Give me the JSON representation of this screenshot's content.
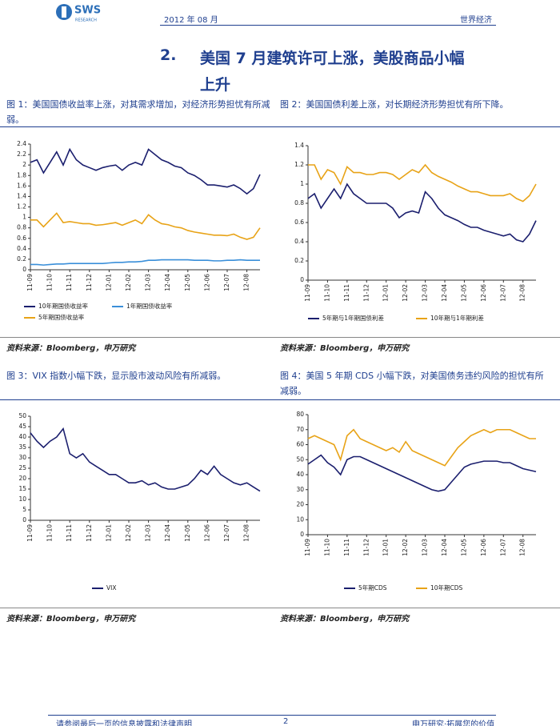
{
  "header": {
    "logo": "SWS",
    "logo_sub": "RESEARCH",
    "date": "2012 年 08 月",
    "section": "世界经济"
  },
  "title": {
    "number": "2.",
    "line1": "美国 7 月建筑许可上涨，美股商品小幅",
    "line2": "上升"
  },
  "figures": [
    {
      "caption": "图 1：美国国债收益率上涨，对其需求增加，对经济形势担忧有所减弱。",
      "source": "资料来源：Bloomberg，申万研究",
      "chart_data": {
        "type": "line",
        "xlim": [
          0,
          35
        ],
        "xticks": [
          {
            "value": 0,
            "label": "11-09"
          },
          {
            "value": 3,
            "label": "11-10"
          },
          {
            "value": 6,
            "label": "11-11"
          },
          {
            "value": 9,
            "label": "11-12"
          },
          {
            "value": 12,
            "label": "12-01"
          },
          {
            "value": 15,
            "label": "12-02"
          },
          {
            "value": 18,
            "label": "12-03"
          },
          {
            "value": 21,
            "label": "12-04"
          },
          {
            "value": 24,
            "label": "12-05"
          },
          {
            "value": 27,
            "label": "12-06"
          },
          {
            "value": 30,
            "label": "12-07"
          },
          {
            "value": 33,
            "label": "12-08"
          }
        ],
        "ylim": [
          0,
          2.4
        ],
        "yticks": [
          0,
          0.2,
          0.4,
          0.6,
          0.8,
          1,
          1.2,
          1.4,
          1.6,
          1.8,
          2,
          2.2,
          2.4
        ],
        "series": [
          {
            "name": "10年期国债收益率",
            "color": "#1b1f6e",
            "values": [
              2.05,
              2.1,
              1.85,
              2.05,
              2.25,
              2.0,
              2.3,
              2.1,
              2.0,
              1.95,
              1.9,
              1.95,
              1.98,
              2.0,
              1.9,
              2.0,
              2.05,
              2.0,
              2.3,
              2.2,
              2.1,
              2.05,
              1.98,
              1.95,
              1.85,
              1.8,
              1.72,
              1.62,
              1.62,
              1.6,
              1.58,
              1.62,
              1.55,
              1.45,
              1.55,
              1.82
            ]
          },
          {
            "name": "1年期国债收益率",
            "color": "#3a8fd9",
            "values": [
              0.1,
              0.1,
              0.09,
              0.1,
              0.11,
              0.11,
              0.12,
              0.12,
              0.12,
              0.12,
              0.12,
              0.12,
              0.13,
              0.14,
              0.14,
              0.15,
              0.15,
              0.16,
              0.18,
              0.18,
              0.19,
              0.19,
              0.19,
              0.19,
              0.19,
              0.18,
              0.18,
              0.18,
              0.17,
              0.17,
              0.18,
              0.18,
              0.19,
              0.18,
              0.18,
              0.18
            ]
          },
          {
            "name": "5年期国债收益率",
            "color": "#e8a317",
            "values": [
              0.95,
              0.95,
              0.82,
              0.95,
              1.08,
              0.9,
              0.92,
              0.9,
              0.88,
              0.88,
              0.85,
              0.86,
              0.88,
              0.9,
              0.85,
              0.9,
              0.95,
              0.88,
              1.05,
              0.95,
              0.88,
              0.86,
              0.82,
              0.8,
              0.75,
              0.72,
              0.7,
              0.68,
              0.66,
              0.66,
              0.65,
              0.68,
              0.62,
              0.58,
              0.62,
              0.8
            ]
          }
        ]
      }
    },
    {
      "caption": "图 2：美国国债利差上涨，对长期经济形势担忧有所下降。",
      "source": "资料来源：Bloomberg，申万研究",
      "chart_data": {
        "type": "line",
        "xlim": [
          0,
          35
        ],
        "xticks": [
          {
            "value": 0,
            "label": "11-09"
          },
          {
            "value": 3,
            "label": "11-10"
          },
          {
            "value": 6,
            "label": "11-11"
          },
          {
            "value": 9,
            "label": "11-12"
          },
          {
            "value": 12,
            "label": "12-01"
          },
          {
            "value": 15,
            "label": "12-02"
          },
          {
            "value": 18,
            "label": "12-03"
          },
          {
            "value": 21,
            "label": "12-04"
          },
          {
            "value": 24,
            "label": "12-05"
          },
          {
            "value": 27,
            "label": "12-06"
          },
          {
            "value": 30,
            "label": "12-07"
          },
          {
            "value": 33,
            "label": "12-08"
          }
        ],
        "ylim": [
          0,
          1.4
        ],
        "yticks": [
          0,
          0.2,
          0.4,
          0.6,
          0.8,
          1,
          1.2,
          1.4
        ],
        "series": [
          {
            "name": "5年期与1年期国债利差",
            "color": "#1b1f6e",
            "values": [
              0.85,
              0.9,
              0.75,
              0.85,
              0.95,
              0.85,
              1.0,
              0.9,
              0.85,
              0.8,
              0.8,
              0.8,
              0.8,
              0.75,
              0.65,
              0.7,
              0.72,
              0.7,
              0.92,
              0.85,
              0.75,
              0.68,
              0.65,
              0.62,
              0.58,
              0.55,
              0.55,
              0.52,
              0.5,
              0.48,
              0.46,
              0.48,
              0.42,
              0.4,
              0.48,
              0.62
            ]
          },
          {
            "name": "10年期与1年期利差",
            "color": "#e8a317",
            "values": [
              1.2,
              1.2,
              1.05,
              1.15,
              1.12,
              1.0,
              1.18,
              1.12,
              1.12,
              1.1,
              1.1,
              1.12,
              1.12,
              1.1,
              1.05,
              1.1,
              1.15,
              1.12,
              1.2,
              1.12,
              1.08,
              1.05,
              1.02,
              0.98,
              0.95,
              0.92,
              0.92,
              0.9,
              0.88,
              0.88,
              0.88,
              0.9,
              0.85,
              0.82,
              0.88,
              1.0
            ]
          }
        ]
      }
    },
    {
      "caption": "图 3：VIX 指数小幅下跌，显示股市波动风险有所减弱。",
      "source": "资料来源：Bloomberg，申万研究",
      "chart_data": {
        "type": "line",
        "xlim": [
          0,
          35
        ],
        "xticks": [
          {
            "value": 0,
            "label": "11-09"
          },
          {
            "value": 3,
            "label": "11-10"
          },
          {
            "value": 6,
            "label": "11-11"
          },
          {
            "value": 9,
            "label": "11-12"
          },
          {
            "value": 12,
            "label": "12-01"
          },
          {
            "value": 15,
            "label": "12-02"
          },
          {
            "value": 18,
            "label": "12-03"
          },
          {
            "value": 21,
            "label": "12-04"
          },
          {
            "value": 24,
            "label": "12-05"
          },
          {
            "value": 27,
            "label": "12-06"
          },
          {
            "value": 30,
            "label": "12-07"
          },
          {
            "value": 33,
            "label": "12-08"
          }
        ],
        "ylim": [
          0,
          50
        ],
        "yticks": [
          0,
          5,
          10,
          15,
          20,
          25,
          30,
          35,
          40,
          45,
          50
        ],
        "series": [
          {
            "name": "VIX",
            "color": "#1b1f6e",
            "values": [
              42,
              38,
              35,
              38,
              40,
              44,
              32,
              30,
              32,
              28,
              26,
              24,
              22,
              22,
              20,
              18,
              18,
              19,
              17,
              18,
              16,
              15,
              15,
              16,
              17,
              20,
              24,
              22,
              26,
              22,
              20,
              18,
              17,
              18,
              16,
              14
            ]
          }
        ]
      }
    },
    {
      "caption": "图 4：美国 5 年期 CDS 小幅下跌，对美国债务违约风险的担忧有所减弱。",
      "source": "资料来源：Bloomberg，申万研究",
      "chart_data": {
        "type": "line",
        "xlim": [
          0,
          35
        ],
        "xticks": [
          {
            "value": 0,
            "label": "11-09"
          },
          {
            "value": 3,
            "label": "11-10"
          },
          {
            "value": 6,
            "label": "11-11"
          },
          {
            "value": 9,
            "label": "11-12"
          },
          {
            "value": 12,
            "label": "12-01"
          },
          {
            "value": 15,
            "label": "12-02"
          },
          {
            "value": 18,
            "label": "12-03"
          },
          {
            "value": 21,
            "label": "12-04"
          },
          {
            "value": 24,
            "label": "12-05"
          },
          {
            "value": 27,
            "label": "12-06"
          },
          {
            "value": 30,
            "label": "12-07"
          },
          {
            "value": 33,
            "label": "12-08"
          }
        ],
        "ylim": [
          0,
          80
        ],
        "yticks": [
          0,
          10,
          20,
          30,
          40,
          50,
          60,
          70,
          80
        ],
        "series": [
          {
            "name": "5年期CDS",
            "color": "#1b1f6e",
            "values": [
              47,
              50,
              53,
              48,
              45,
              40,
              50,
              52,
              52,
              50,
              48,
              46,
              44,
              42,
              40,
              38,
              36,
              34,
              32,
              30,
              29,
              30,
              35,
              40,
              45,
              47,
              48,
              49,
              49,
              49,
              48,
              48,
              46,
              44,
              43,
              42
            ]
          },
          {
            "name": "10年期CDS",
            "color": "#e8a317",
            "values": [
              64,
              66,
              64,
              62,
              60,
              50,
              66,
              70,
              64,
              62,
              60,
              58,
              56,
              58,
              55,
              62,
              56,
              54,
              52,
              50,
              48,
              46,
              52,
              58,
              62,
              66,
              68,
              70,
              68,
              70,
              70,
              70,
              68,
              66,
              64,
              64
            ]
          }
        ]
      }
    }
  ],
  "footer": {
    "disclaimer": "请参阅最后一页的信息披露和法律声明",
    "page": "2",
    "slogan": "申万研究·拓展您的价值"
  }
}
